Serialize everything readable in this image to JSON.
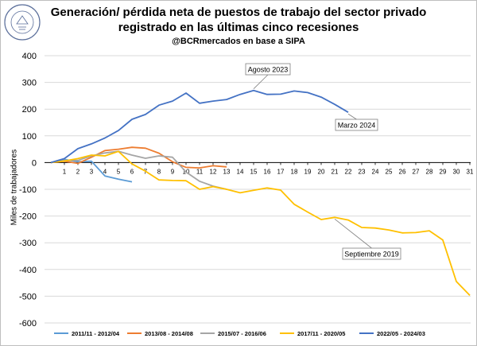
{
  "title": "Generación/ pérdida neta de puestos de trabajo del sector privado",
  "subtitle": "registrado en las últimas cinco recesiones",
  "source": "@BCRmercados en base a SIPA",
  "logo_text": "BOLSA DE COMERCIO DE ROSARIO",
  "colors": {
    "s1": "#5b9bd5",
    "s2": "#ed7d31",
    "s3": "#a5a5a5",
    "s4": "#ffc000",
    "s5": "#4472c4",
    "grid": "#d9d9d9",
    "axis": "#bfbfbf"
  },
  "chart_data": {
    "type": "line",
    "ylabel": "Miles de trabajadores",
    "xlabel": "",
    "ylim": [
      -600,
      400
    ],
    "y_ticks": [
      -600,
      -500,
      -400,
      -300,
      -200,
      -100,
      0,
      100,
      200,
      300,
      400
    ],
    "xlim": [
      0,
      31
    ],
    "x_ticks": [
      1,
      2,
      3,
      4,
      5,
      6,
      7,
      8,
      9,
      10,
      11,
      12,
      13,
      14,
      15,
      16,
      17,
      18,
      19,
      20,
      21,
      22,
      23,
      24,
      25,
      26,
      27,
      28,
      29,
      30,
      31
    ],
    "grid": true,
    "legend_position": "bottom",
    "series": [
      {
        "name": "2011/11 - 2012/04",
        "color_key": "s1",
        "values": [
          0,
          12,
          3,
          5,
          -50,
          -62,
          -72
        ]
      },
      {
        "name": "2013/08 - 2014/08",
        "color_key": "s2",
        "values": [
          0,
          5,
          -3,
          20,
          45,
          50,
          57,
          54,
          35,
          3,
          -18,
          -20,
          -12,
          -16
        ]
      },
      {
        "name": "2015/07 - 2016/06",
        "color_key": "s3",
        "values": [
          0,
          8,
          8,
          25,
          36,
          42,
          28,
          16,
          25,
          20,
          -35,
          -70,
          -88,
          -100
        ]
      },
      {
        "name": "2017/11 - 2020/05",
        "color_key": "s4",
        "values": [
          0,
          6,
          15,
          28,
          25,
          42,
          -5,
          -32,
          -65,
          -67,
          -68,
          -100,
          -90,
          -100,
          -113,
          -104,
          -95,
          -103,
          -156,
          -185,
          -213,
          -205,
          -215,
          -243,
          -245,
          -252,
          -263,
          -262,
          -255,
          -290,
          -445,
          -497
        ]
      },
      {
        "name": "2022/05 - 2024/03",
        "color_key": "s5",
        "values": [
          0,
          15,
          52,
          70,
          92,
          120,
          162,
          180,
          215,
          230,
          260,
          222,
          230,
          236,
          255,
          270,
          255,
          256,
          268,
          262,
          245,
          218,
          188
        ]
      }
    ],
    "annotations": [
      {
        "text": "Agosto 2023",
        "series_index": 4,
        "x": 15
      },
      {
        "text": "Marzo 2024",
        "series_index": 4,
        "x": 22
      },
      {
        "text": "Septiembre 2019",
        "series_index": 3,
        "x": 22
      }
    ]
  }
}
